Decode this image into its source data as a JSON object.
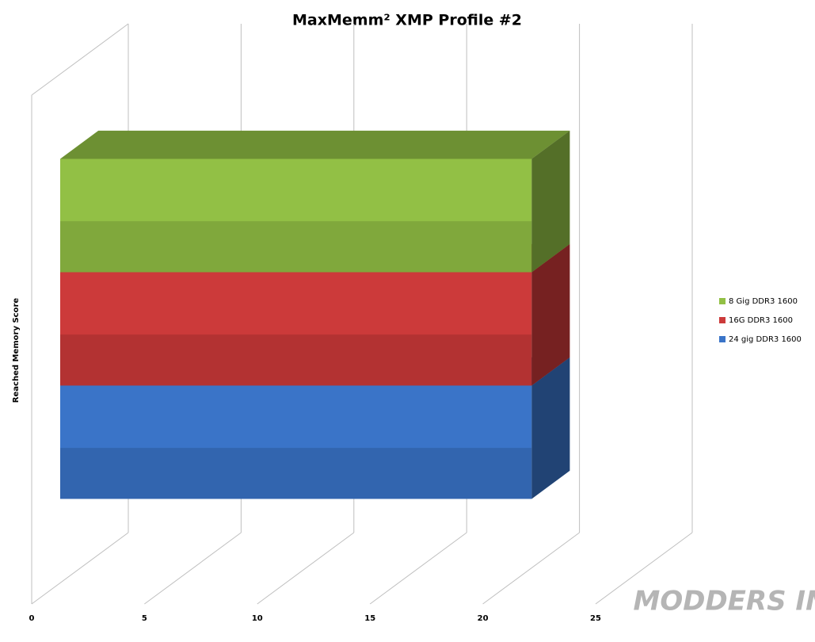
{
  "chart_data": {
    "type": "bar3d",
    "title": "MaxMemm² XMP Profile #2",
    "y_label": "Reached Memory Score",
    "categories": [
      null
    ],
    "series": [
      {
        "name": "8 Gig DDR3 1600",
        "color": "#92c045",
        "values": [
          20.9
        ]
      },
      {
        "name": "16G DDR3 1600",
        "color": "#cc3a3a",
        "values": [
          20.9
        ]
      },
      {
        "name": "24 gig DDR3 1600",
        "color": "#3a74c8",
        "values": [
          20.9
        ]
      }
    ],
    "xlim": [
      0,
      25
    ],
    "xticks": [
      0,
      5,
      10,
      15,
      20,
      25
    ],
    "grid": true,
    "legend": "right",
    "watermark": "MODDERS INC"
  }
}
